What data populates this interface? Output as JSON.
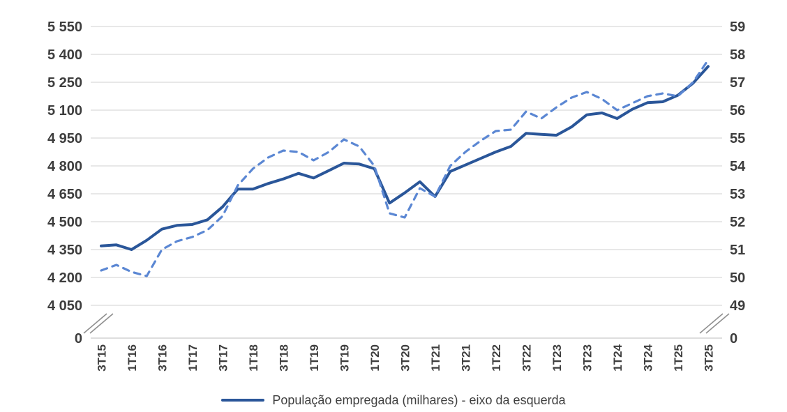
{
  "chart_data": {
    "type": "line",
    "title": "",
    "x": [
      "3T15",
      "4T15",
      "1T16",
      "2T16",
      "3T16",
      "4T16",
      "1T17",
      "2T17",
      "3T17",
      "4T17",
      "1T18",
      "2T18",
      "3T18",
      "4T18",
      "1T19",
      "2T19",
      "3T19",
      "4T19",
      "1T20",
      "2T20",
      "3T20",
      "4T20",
      "1T21",
      "2T21",
      "3T21",
      "4T21",
      "1T22",
      "2T22",
      "3T22",
      "4T22",
      "1T23",
      "2T23",
      "3T23",
      "4T23",
      "1T24",
      "2T24",
      "3T24",
      "4T24",
      "1T25",
      "2T25",
      "3T25"
    ],
    "x_tick_labels": [
      "3T15",
      "1T16",
      "3T16",
      "1T17",
      "3T17",
      "1T18",
      "3T18",
      "1T19",
      "3T19",
      "1T20",
      "3T20",
      "1T21",
      "3T21",
      "1T22",
      "3T22",
      "1T23",
      "3T23",
      "1T24",
      "3T24",
      "1T25",
      "3T25"
    ],
    "left_axis": {
      "tick_labels": [
        "5 550",
        "5 400",
        "5 250",
        "5 100",
        "4 950",
        "4 800",
        "4 650",
        "4 500",
        "4 350",
        "4 200",
        "4 050",
        "0"
      ],
      "tick_values": [
        5550,
        5400,
        5250,
        5100,
        4950,
        4800,
        4650,
        4500,
        4350,
        4200,
        4050,
        0
      ],
      "axis_break": true
    },
    "right_axis": {
      "tick_labels": [
        "59",
        "58",
        "57",
        "56",
        "55",
        "54",
        "53",
        "52",
        "51",
        "50",
        "49",
        "0"
      ],
      "tick_values": [
        59,
        58,
        57,
        56,
        55,
        54,
        53,
        52,
        51,
        50,
        49,
        0
      ],
      "axis_break": true
    },
    "series": [
      {
        "name": "População empregada (milhares) - eixo da esquerda",
        "axis": "left",
        "line_style": "solid",
        "color": "#2a5699",
        "values": [
          4370,
          4375,
          4350,
          4400,
          4460,
          4480,
          4485,
          4510,
          4580,
          4675,
          4675,
          4705,
          4730,
          4760,
          4735,
          4775,
          4815,
          4810,
          4785,
          4600,
          4655,
          4715,
          4635,
          4770,
          4805,
          4840,
          4875,
          4905,
          4975,
          4970,
          4965,
          5010,
          5075,
          5085,
          5055,
          5105,
          5140,
          5145,
          5180,
          5245,
          5335
        ]
      },
      {
        "name": "",
        "axis": "right",
        "line_style": "dashed",
        "color": "#5b87d3",
        "values": [
          50.25,
          50.45,
          50.2,
          50.05,
          51.0,
          51.3,
          51.45,
          51.7,
          52.2,
          53.3,
          53.9,
          54.3,
          54.55,
          54.5,
          54.2,
          54.5,
          54.95,
          54.7,
          54.0,
          52.3,
          52.15,
          53.2,
          52.9,
          54.0,
          54.5,
          54.9,
          55.25,
          55.3,
          55.95,
          55.7,
          56.1,
          56.45,
          56.65,
          56.4,
          56.0,
          56.25,
          56.5,
          56.6,
          56.5,
          57.0,
          57.8
        ]
      }
    ],
    "legend_position": "bottom",
    "grid": true
  },
  "legend": {
    "label": "População empregada (milhares) - eixo da esquerda"
  },
  "colors": {
    "solid_series": "#2a5699",
    "dashed_series": "#5b87d3",
    "gridline": "#d9d9d9",
    "baseline": "#c9c9c9",
    "axis_label": "#3d3d3d",
    "break_mark": "#8f8f8f",
    "background": "#ffffff"
  }
}
